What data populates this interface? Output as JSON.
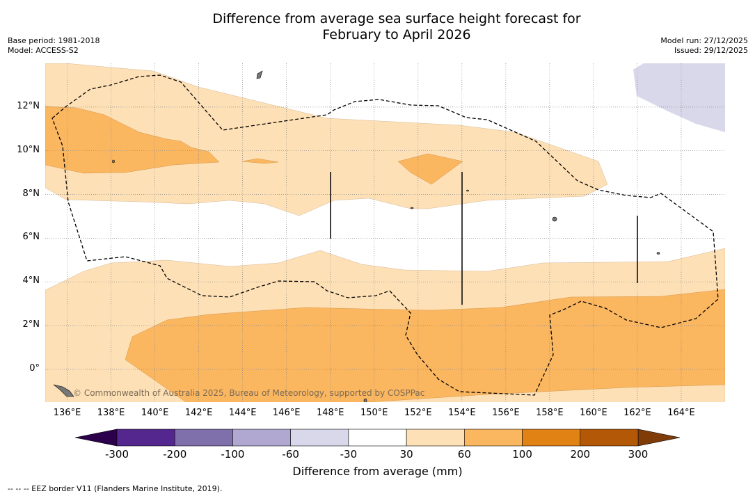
{
  "title_line1": "Difference from average sea surface height forecast for",
  "title_line2": "February to April 2026",
  "base_period": "Base period: 1981-2018",
  "model": "Model: ACCESS-S2",
  "model_run": "Model run: 27/12/2025",
  "issued": "Issued: 29/12/2025",
  "copyright": "© Commonwealth of Australia 2025, Bureau of Meteorology, supported by COSPPac",
  "footer_note": "--  --  -- EEZ border V11 (Flanders Marine Institute, 2019).",
  "map": {
    "lon_labels": [
      "136°E",
      "138°E",
      "140°E",
      "142°E",
      "144°E",
      "146°E",
      "148°E",
      "150°E",
      "152°E",
      "154°E",
      "156°E",
      "158°E",
      "160°E",
      "162°E",
      "164°E"
    ],
    "lat_labels": [
      "12°N",
      "10°N",
      "8°N",
      "6°N",
      "4°N",
      "2°N",
      "0°"
    ],
    "lon_range": [
      135,
      166
    ],
    "lat_range": [
      -1.5,
      14
    ]
  },
  "colorbar": {
    "label": "Difference from average (mm)",
    "ticks": [
      "-300",
      "-200",
      "-100",
      "-60",
      "-30",
      "30",
      "60",
      "100",
      "200",
      "300"
    ],
    "colors": [
      "#54278f",
      "#7f6fab",
      "#b0a8d1",
      "#d9d8ea",
      "#ffffff",
      "#fee0b6",
      "#fbb660",
      "#e08214",
      "#b35806"
    ],
    "extend_low": "#2d004b",
    "extend_high": "#7f3b08"
  }
}
